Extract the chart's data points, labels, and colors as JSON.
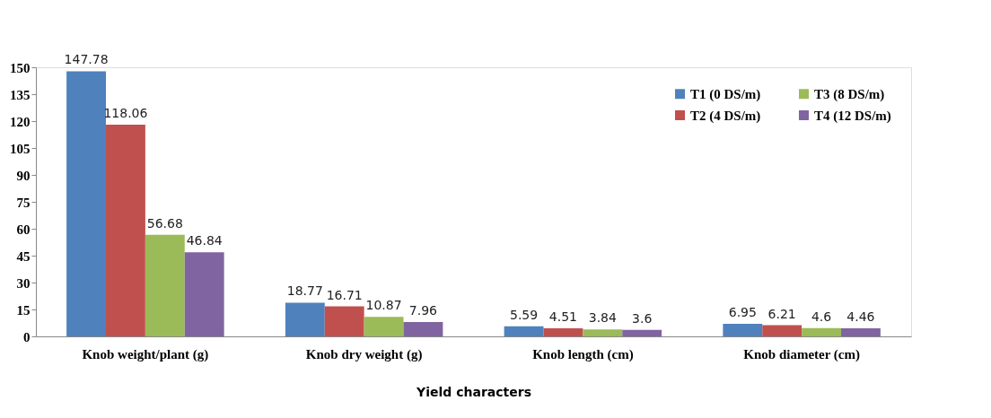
{
  "chart_data": {
    "type": "bar",
    "xlabel": "Yield characters",
    "categories": [
      "Knob weight/plant (g)",
      "Knob dry weight (g)",
      "Knob length (cm)",
      "Knob diameter (cm)"
    ],
    "series": [
      {
        "name": "T1 (0 DS/m)",
        "color": "#4f81bd",
        "values": [
          147.78,
          18.77,
          5.59,
          6.95
        ]
      },
      {
        "name": "T2 (4 DS/m)",
        "color": "#c0504d",
        "values": [
          118.06,
          16.71,
          4.51,
          6.21
        ]
      },
      {
        "name": "T3 (8 DS/m)",
        "color": "#9bbb59",
        "values": [
          56.68,
          10.87,
          3.84,
          4.6
        ]
      },
      {
        "name": "T4 (12 DS/m)",
        "color": "#8064a2",
        "values": [
          46.84,
          7.96,
          3.6,
          4.46
        ]
      }
    ],
    "ylim": [
      0,
      150
    ],
    "yticks": [
      0,
      15,
      30,
      45,
      60,
      75,
      90,
      105,
      120,
      135,
      150
    ],
    "data_labels": true,
    "grid": false,
    "legend": "top right"
  }
}
